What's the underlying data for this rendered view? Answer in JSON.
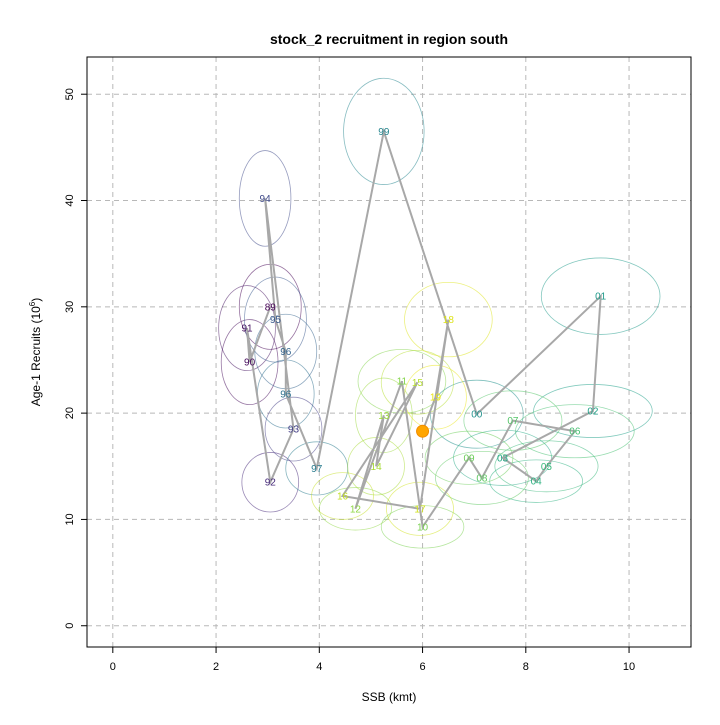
{
  "chart_data": {
    "type": "scatter",
    "title": "stock_2 recruitment in region south",
    "xlabel": "SSB (kmt)",
    "ylabel": "Age-1 Recruits (10^6)",
    "ylabel_prefix": "Age-1 Recruits (10",
    "ylabel_sup": "6",
    "ylabel_suffix": ")",
    "xlim": [
      -0.5,
      11.2
    ],
    "ylim": [
      -2.0,
      53.5
    ],
    "xticks": [
      0,
      2,
      4,
      6,
      8,
      10
    ],
    "yticks": [
      0,
      10,
      20,
      30,
      40,
      50
    ],
    "grid": true,
    "current_point": {
      "x": 6.0,
      "y": 18.3,
      "color": "#ffa500"
    },
    "points": [
      {
        "label": "89",
        "x": 3.05,
        "y": 30.0,
        "sx": 0.6,
        "sy": 4.0,
        "color": "#440154"
      },
      {
        "label": "90",
        "x": 2.65,
        "y": 24.8,
        "sx": 0.55,
        "sy": 4.0,
        "color": "#450b5b"
      },
      {
        "label": "91",
        "x": 2.6,
        "y": 28.0,
        "sx": 0.55,
        "sy": 4.0,
        "color": "#471563"
      },
      {
        "label": "92",
        "x": 3.05,
        "y": 13.5,
        "sx": 0.55,
        "sy": 2.8,
        "color": "#472a7a"
      },
      {
        "label": "93",
        "x": 3.5,
        "y": 18.5,
        "sx": 0.55,
        "sy": 3.0,
        "color": "#433e85"
      },
      {
        "label": "94",
        "x": 2.95,
        "y": 40.2,
        "sx": 0.5,
        "sy": 4.5,
        "color": "#3e4989"
      },
      {
        "label": "95",
        "x": 3.15,
        "y": 28.8,
        "sx": 0.6,
        "sy": 4.0,
        "color": "#38588c"
      },
      {
        "label": "96",
        "x": 3.35,
        "y": 25.8,
        "sx": 0.6,
        "sy": 3.5,
        "color": "#33638d"
      },
      {
        "label": "96",
        "x": 3.35,
        "y": 21.8,
        "sx": 0.55,
        "sy": 3.2,
        "color": "#2d708e"
      },
      {
        "label": "97",
        "x": 3.95,
        "y": 14.8,
        "sx": 0.6,
        "sy": 2.5,
        "color": "#297b8e"
      },
      {
        "label": "99",
        "x": 5.25,
        "y": 46.5,
        "sx": 0.78,
        "sy": 5.0,
        "color": "#25858e"
      },
      {
        "label": "00",
        "x": 7.05,
        "y": 19.9,
        "sx": 0.9,
        "sy": 3.2,
        "color": "#21918c"
      },
      {
        "label": "01",
        "x": 9.45,
        "y": 31.0,
        "sx": 1.15,
        "sy": 3.6,
        "color": "#1f9a8a"
      },
      {
        "label": "02",
        "x": 9.3,
        "y": 20.2,
        "sx": 1.15,
        "sy": 2.5,
        "color": "#1fa188"
      },
      {
        "label": "03",
        "x": 7.55,
        "y": 15.8,
        "sx": 0.95,
        "sy": 2.6,
        "color": "#22a884"
      },
      {
        "label": "04",
        "x": 8.2,
        "y": 13.6,
        "sx": 0.9,
        "sy": 2.0,
        "color": "#2ab07f"
      },
      {
        "label": "05",
        "x": 8.4,
        "y": 15.0,
        "sx": 1.0,
        "sy": 2.4,
        "color": "#35b779"
      },
      {
        "label": "06",
        "x": 8.95,
        "y": 18.3,
        "sx": 1.15,
        "sy": 2.5,
        "color": "#44bf70"
      },
      {
        "label": "07",
        "x": 7.75,
        "y": 19.3,
        "sx": 0.95,
        "sy": 2.8,
        "color": "#54c568"
      },
      {
        "label": "08",
        "x": 7.15,
        "y": 13.9,
        "sx": 0.9,
        "sy": 2.5,
        "color": "#5ec962"
      },
      {
        "label": "09",
        "x": 6.9,
        "y": 15.8,
        "sx": 0.85,
        "sy": 2.5,
        "color": "#6ccd5a"
      },
      {
        "label": "10",
        "x": 6.0,
        "y": 9.3,
        "sx": 0.8,
        "sy": 2.0,
        "color": "#7ad151"
      },
      {
        "label": "11",
        "x": 5.6,
        "y": 23.0,
        "sx": 0.85,
        "sy": 3.0,
        "color": "#84d44b"
      },
      {
        "label": "12",
        "x": 4.7,
        "y": 11.0,
        "sx": 0.7,
        "sy": 2.0,
        "color": "#8fd744"
      },
      {
        "label": "13",
        "x": 5.25,
        "y": 19.8,
        "sx": 0.55,
        "sy": 3.5,
        "color": "#9bd93c"
      },
      {
        "label": "14",
        "x": 5.1,
        "y": 15.0,
        "sx": 0.55,
        "sy": 2.7,
        "color": "#a8db34"
      },
      {
        "label": "15",
        "x": 5.9,
        "y": 22.9,
        "sx": 0.7,
        "sy": 3.0,
        "color": "#b5de2b"
      },
      {
        "label": "16",
        "x": 4.45,
        "y": 12.2,
        "sx": 0.6,
        "sy": 2.2,
        "color": "#c2df23"
      },
      {
        "label": "17",
        "x": 5.95,
        "y": 11.0,
        "sx": 0.65,
        "sy": 2.5,
        "color": "#d0e11c"
      },
      {
        "label": "18",
        "x": 6.5,
        "y": 28.8,
        "sx": 0.85,
        "sy": 3.5,
        "color": "#dde318"
      },
      {
        "label": "19",
        "x": 6.25,
        "y": 21.5,
        "sx": 0.6,
        "sy": 3.0,
        "color": "#eae51a"
      }
    ],
    "path": [
      {
        "x": 3.05,
        "y": 30.0
      },
      {
        "x": 2.65,
        "y": 24.8
      },
      {
        "x": 2.6,
        "y": 28.0
      },
      {
        "x": 3.05,
        "y": 13.5
      },
      {
        "x": 3.5,
        "y": 18.5
      },
      {
        "x": 2.95,
        "y": 40.2
      },
      {
        "x": 3.15,
        "y": 28.8
      },
      {
        "x": 3.35,
        "y": 25.8
      },
      {
        "x": 3.35,
        "y": 21.8
      },
      {
        "x": 3.95,
        "y": 14.8
      },
      {
        "x": 5.25,
        "y": 46.5
      },
      {
        "x": 7.05,
        "y": 19.9
      },
      {
        "x": 9.45,
        "y": 31.0
      },
      {
        "x": 9.3,
        "y": 20.2
      },
      {
        "x": 7.55,
        "y": 15.8
      },
      {
        "x": 8.2,
        "y": 13.6
      },
      {
        "x": 8.4,
        "y": 15.0
      },
      {
        "x": 8.95,
        "y": 18.3
      },
      {
        "x": 7.75,
        "y": 19.3
      },
      {
        "x": 7.15,
        "y": 13.9
      },
      {
        "x": 6.9,
        "y": 15.8
      },
      {
        "x": 6.0,
        "y": 9.3
      },
      {
        "x": 5.6,
        "y": 23.0
      },
      {
        "x": 4.7,
        "y": 11.0
      },
      {
        "x": 5.25,
        "y": 19.8
      },
      {
        "x": 5.1,
        "y": 15.0
      },
      {
        "x": 5.9,
        "y": 22.9
      },
      {
        "x": 4.45,
        "y": 12.2
      },
      {
        "x": 5.95,
        "y": 11.0
      },
      {
        "x": 6.5,
        "y": 28.8
      },
      {
        "x": 6.25,
        "y": 21.5
      },
      {
        "x": 6.0,
        "y": 18.3
      }
    ]
  }
}
